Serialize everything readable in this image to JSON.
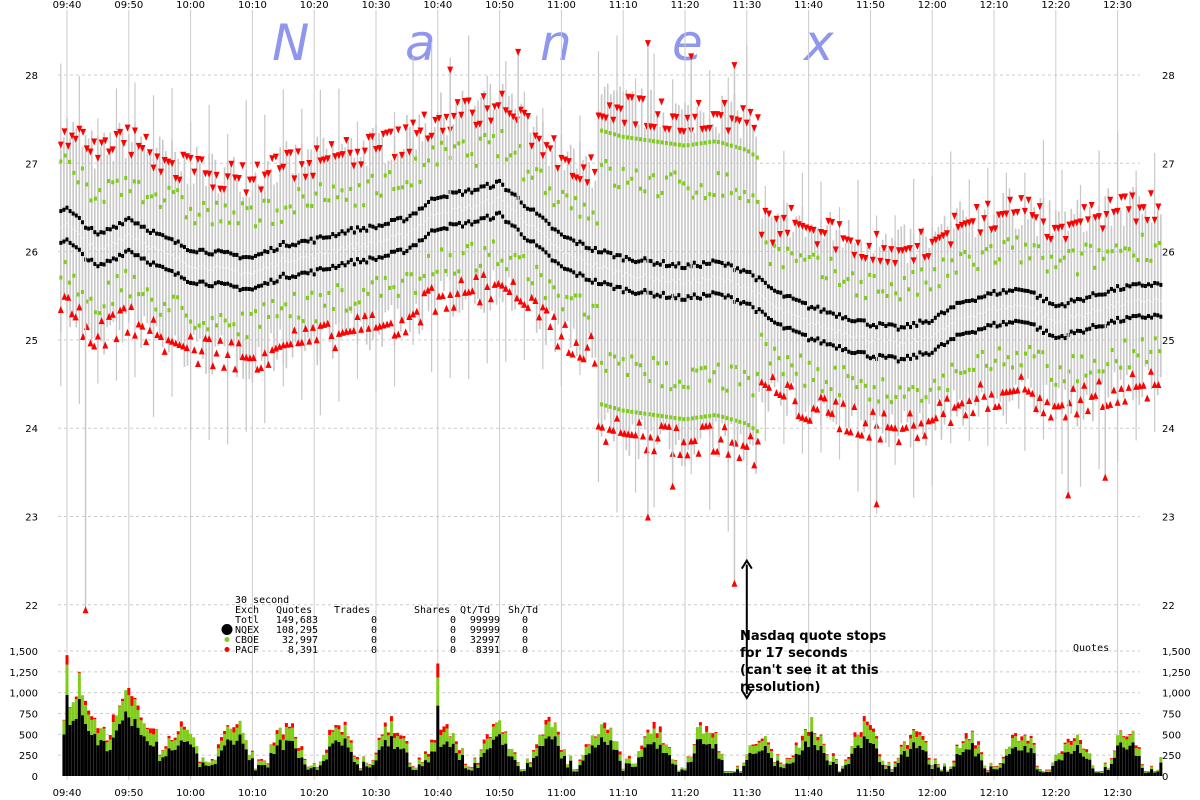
{
  "brand": {
    "letters": [
      "N",
      "a",
      "n",
      "e",
      "x"
    ]
  },
  "chart_data": {
    "type": "line",
    "xlabels": [
      "09:40",
      "09:50",
      "10:00",
      "10:10",
      "10:20",
      "10:30",
      "10:40",
      "10:50",
      "11:00",
      "11:10",
      "11:20",
      "11:30",
      "11:40",
      "11:50",
      "12:00",
      "12:10",
      "12:20",
      "12:30"
    ],
    "price_axis": {
      "ticks": [
        22,
        23,
        24,
        25,
        26,
        27,
        28
      ],
      "ylim": [
        21.6,
        28.9
      ]
    },
    "volume_axis": {
      "ticks": [
        0,
        250,
        500,
        750,
        1000,
        1250,
        1500
      ],
      "tick_labels": [
        "0",
        "250",
        "500",
        "750",
        "1,000",
        "1,250",
        "1,500"
      ],
      "ylim": [
        0,
        1500
      ]
    },
    "volume_label": "Quotes",
    "colors": {
      "black": "#000000",
      "green": "#7fcc1a",
      "red": "#ff0000",
      "gray": "#c8c8c8",
      "grid": "#cccccc"
    },
    "mid_series": {
      "times": [
        "09:40",
        "09:45",
        "09:50",
        "09:55",
        "10:00",
        "10:05",
        "10:10",
        "10:15",
        "10:20",
        "10:25",
        "10:30",
        "10:35",
        "10:40",
        "10:45",
        "10:50",
        "10:55",
        "11:00",
        "11:05",
        "11:10",
        "11:15",
        "11:20",
        "11:25",
        "11:30",
        "11:35",
        "11:40",
        "11:45",
        "11:50",
        "11:55",
        "12:00",
        "12:05",
        "12:10",
        "12:15",
        "12:20",
        "12:25",
        "12:30",
        "12:35"
      ],
      "values": [
        26.3,
        26.0,
        26.2,
        26.0,
        25.85,
        25.8,
        25.75,
        25.9,
        25.95,
        26.05,
        26.1,
        26.2,
        26.45,
        26.5,
        26.6,
        26.3,
        26.0,
        25.85,
        25.75,
        25.7,
        25.65,
        25.7,
        25.6,
        25.35,
        25.2,
        25.1,
        25.0,
        24.95,
        25.05,
        25.25,
        25.35,
        25.4,
        25.2,
        25.3,
        25.4,
        25.45
      ]
    },
    "volume": {
      "levels": [
        0,
        250,
        500,
        750,
        1000,
        1250,
        1500
      ],
      "peaks": [
        {
          "time": "09:40",
          "value": 1450
        },
        {
          "time": "09:42",
          "value": 1250
        },
        {
          "time": "10:40",
          "value": 1350
        }
      ]
    },
    "stats": {
      "interval": "30 second",
      "headers": [
        "Exch",
        "Quotes",
        "Trades",
        "Shares",
        "Qt/Td",
        "Sh/Td"
      ],
      "rows": [
        {
          "exch": "Totl",
          "quotes": "149,683",
          "trades": "0",
          "shares": "0",
          "qt_td": "99999",
          "sh_td": "0",
          "color": ""
        },
        {
          "exch": "NQEX",
          "quotes": "108,295",
          "trades": "0",
          "shares": "0",
          "qt_td": "99999",
          "sh_td": "0",
          "color": "#000000"
        },
        {
          "exch": "CBOE",
          "quotes": "32,997",
          "trades": "0",
          "shares": "0",
          "qt_td": "32997",
          "sh_td": "0",
          "color": "#7fcc1a"
        },
        {
          "exch": "PACF",
          "quotes": "8,391",
          "trades": "0",
          "shares": "0",
          "qt_td": "8391",
          "sh_td": "0",
          "color": "#ff0000"
        }
      ]
    },
    "annotation": {
      "lines": [
        "Nasdaq quote stops",
        "for 17 seconds",
        "(can't see it at this",
        "resolution)"
      ],
      "time": "11:30",
      "price_top": 22.5
    }
  }
}
